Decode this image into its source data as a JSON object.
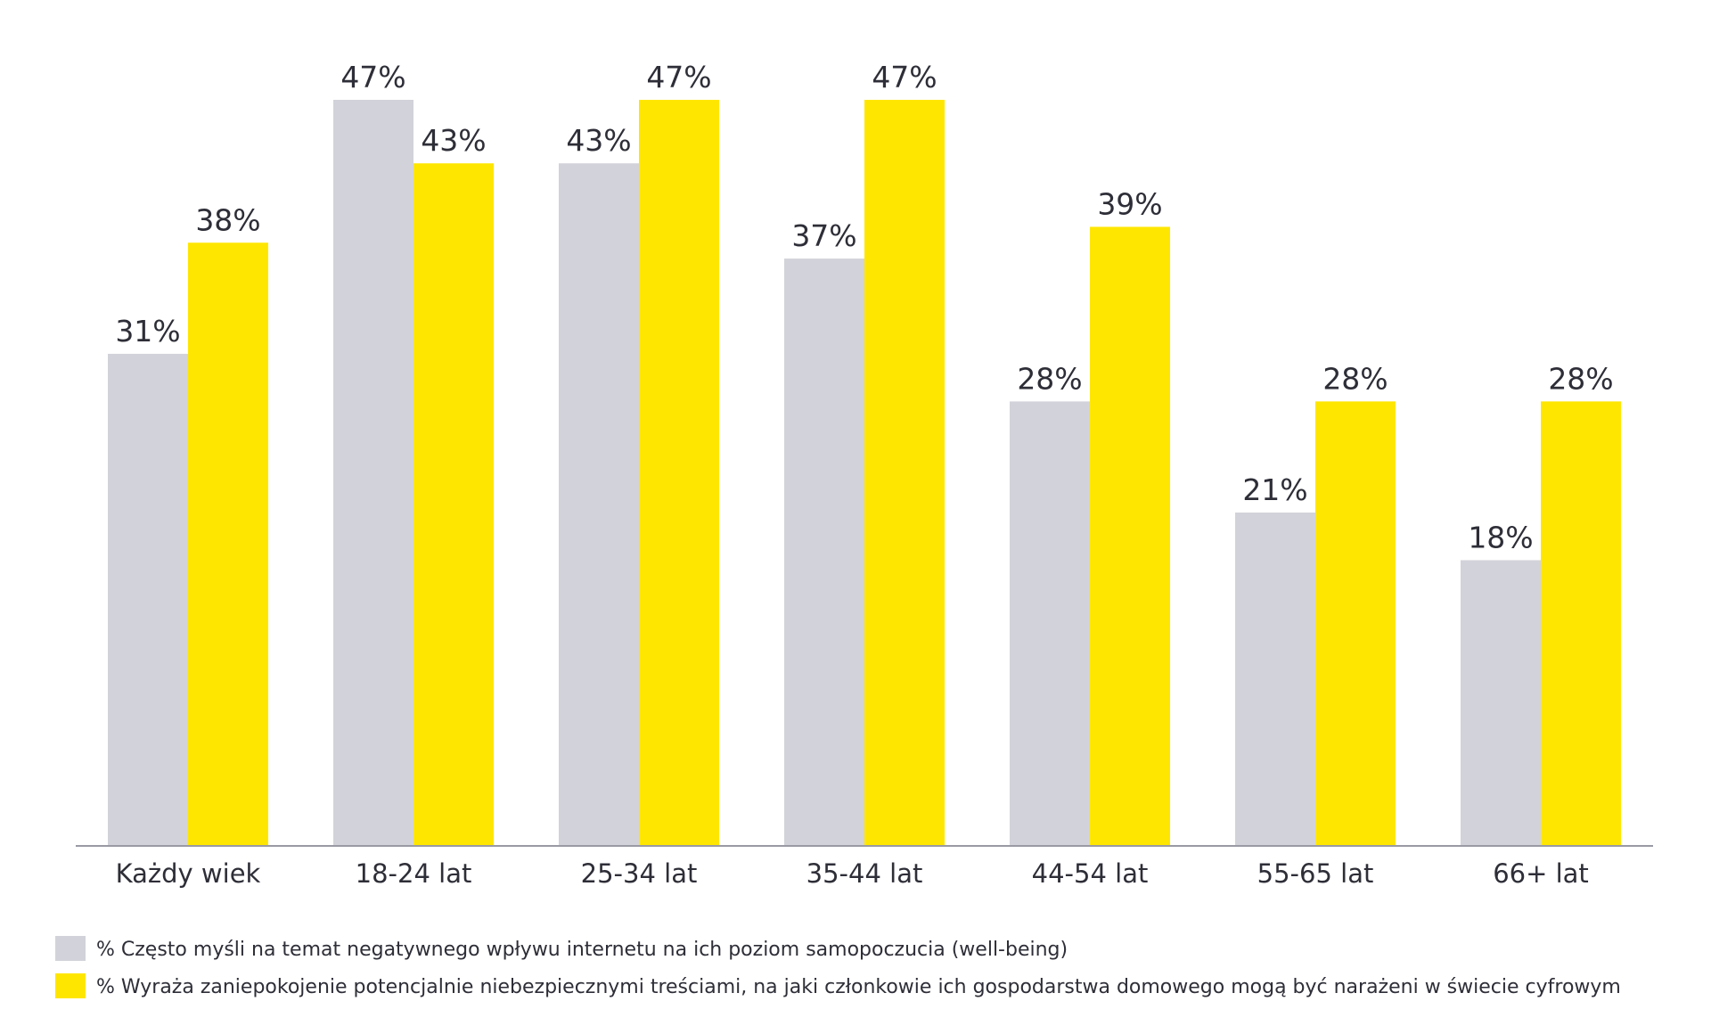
{
  "chart_data": {
    "type": "bar",
    "categories": [
      "Każdy wiek",
      "18-24 lat",
      "25-34 lat",
      "35-44 lat",
      "44-54 lat",
      "55-65 lat",
      "66+ lat"
    ],
    "series": [
      {
        "name": "% Często myśli na temat negatywnego wpływu internetu na ich poziom samopoczucia (well-being)",
        "values": [
          31,
          47,
          43,
          37,
          28,
          21,
          18
        ],
        "color": "#d2d2da"
      },
      {
        "name": "% Wyraża zaniepokojenie potencjalnie niebezpiecznymi treściami, na jaki członkowie ich gospodarstwa domowego mogą być narażeni w świecie cyfrowym",
        "values": [
          38,
          43,
          47,
          47,
          39,
          28,
          28
        ],
        "color": "#ffe600"
      }
    ],
    "value_format": "{v}%",
    "ylim": [
      0,
      47
    ],
    "grid": false,
    "y_axis_visible": false,
    "legend_position": "bottom-left"
  }
}
